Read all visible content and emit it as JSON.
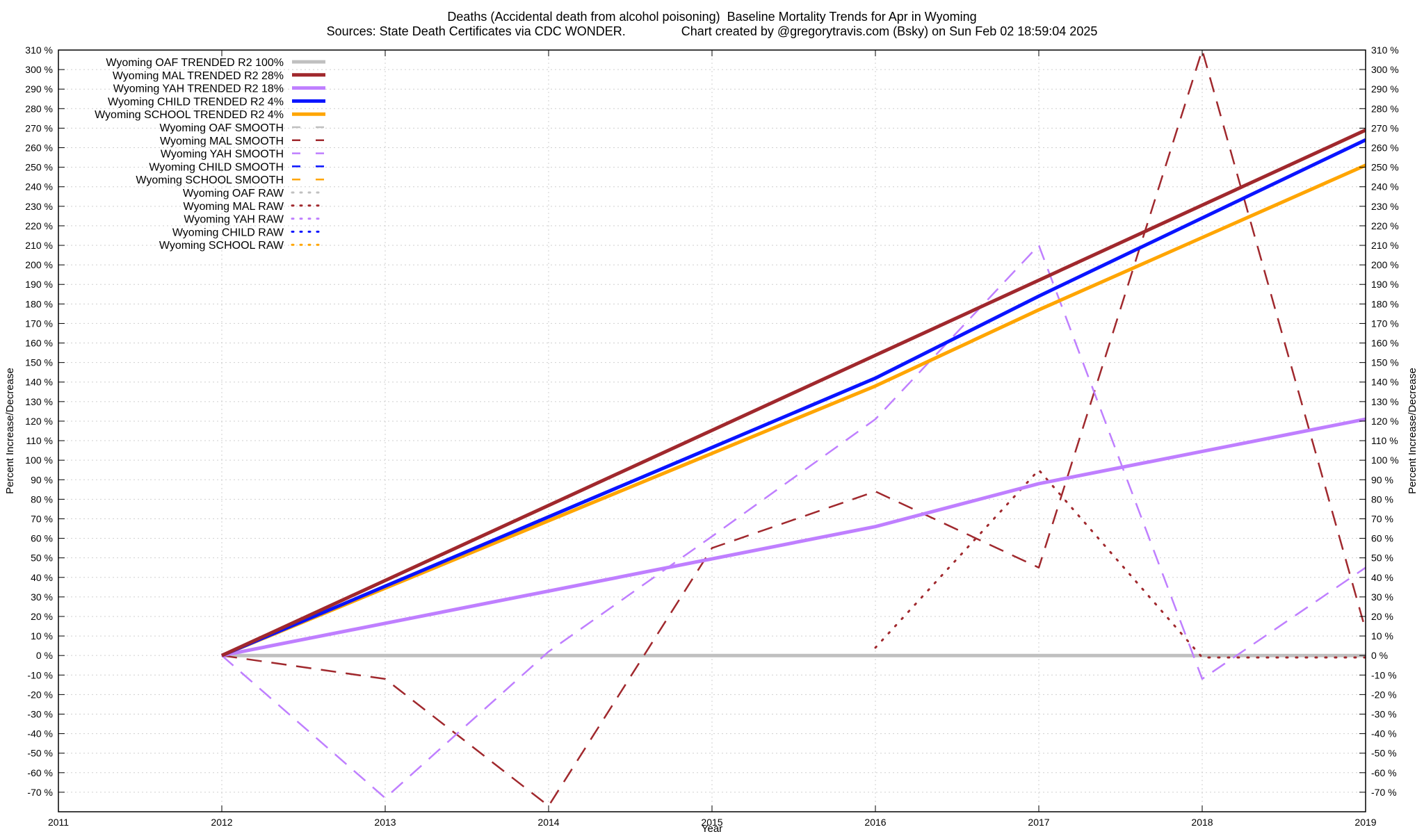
{
  "chart_data": {
    "type": "line",
    "title": "Deaths (Accidental death from alcohol poisoning)  Baseline Mortality Trends for Apr in Wyoming",
    "subtitle": "Sources: State Death Certificates via CDC WONDER.                Chart created by @gregorytravis.com (Bsky) on Sun Feb 02 18:59:04 2025",
    "xlabel": "Year",
    "ylabel": "Percent Increase/Decrease",
    "xlim": [
      2011,
      2019
    ],
    "ylim": [
      -80,
      310
    ],
    "x_ticks": [
      "2011",
      "2012",
      "2013",
      "2014",
      "2015",
      "2016",
      "2017",
      "2018",
      "2019"
    ],
    "y_ticks": [
      "310 %",
      "300 %",
      "290 %",
      "280 %",
      "270 %",
      "260 %",
      "250 %",
      "240 %",
      "230 %",
      "220 %",
      "210 %",
      "200 %",
      "190 %",
      "180 %",
      "170 %",
      "160 %",
      "150 %",
      "140 %",
      "130 %",
      "120 %",
      "110 %",
      "100 %",
      "90 %",
      "80 %",
      "70 %",
      "60 %",
      "50 %",
      "40 %",
      "30 %",
      "20 %",
      "10 %",
      "0 %",
      "-10 %",
      "-20 %",
      "-30 %",
      "-40 %",
      "-50 %",
      "-60 %",
      "-70 %"
    ],
    "grid": true,
    "legend_position": "top-left",
    "series": [
      {
        "name": "Wyoming OAF TRENDED R2 100%",
        "style": "trend",
        "color": "#c0c0c0",
        "x": [
          2012,
          2019
        ],
        "y": [
          0,
          0
        ]
      },
      {
        "name": "Wyoming MAL TRENDED R2  28%",
        "style": "trend",
        "color": "#a0282d",
        "x": [
          2012,
          2019
        ],
        "y": [
          0,
          269
        ]
      },
      {
        "name": "Wyoming YAH TRENDED R2  18%",
        "style": "trend",
        "color": "#bf7fff",
        "x": [
          2012,
          2016,
          2017,
          2019
        ],
        "y": [
          0,
          66,
          88,
          121
        ]
      },
      {
        "name": "Wyoming CHILD TRENDED R2   4%",
        "style": "trend",
        "color": "#0a14ff",
        "x": [
          2012,
          2016,
          2017,
          2019
        ],
        "y": [
          0,
          142,
          184,
          264
        ]
      },
      {
        "name": "Wyoming SCHOOL TRENDED R2   4%",
        "style": "trend",
        "color": "#ffa500",
        "x": [
          2012,
          2016,
          2017,
          2019
        ],
        "y": [
          0,
          138,
          177,
          251
        ]
      },
      {
        "name": "Wyoming OAF SMOOTH",
        "style": "smooth",
        "color": "#c0c0c0",
        "x": [],
        "y": []
      },
      {
        "name": "Wyoming MAL SMOOTH",
        "style": "smooth",
        "color": "#a0282d",
        "x": [
          2012,
          2013,
          2014,
          2015,
          2016,
          2017,
          2018,
          2019
        ],
        "y": [
          0,
          -12,
          -77,
          55,
          84,
          45,
          310,
          13
        ]
      },
      {
        "name": "Wyoming YAH SMOOTH",
        "style": "smooth",
        "color": "#bf7fff",
        "x": [
          2012,
          2013,
          2014,
          2015,
          2016,
          2017,
          2018,
          2019
        ],
        "y": [
          0,
          -73,
          2,
          61,
          121,
          210,
          -12,
          45
        ]
      },
      {
        "name": "Wyoming CHILD SMOOTH",
        "style": "smooth",
        "color": "#0a14ff",
        "x": [],
        "y": []
      },
      {
        "name": "Wyoming SCHOOL SMOOTH",
        "style": "smooth",
        "color": "#ffa500",
        "x": [],
        "y": []
      },
      {
        "name": "Wyoming OAF RAW",
        "style": "raw",
        "color": "#c0c0c0",
        "x": [],
        "y": []
      },
      {
        "name": "Wyoming MAL RAW",
        "style": "raw",
        "color": "#a0282d",
        "x": [
          2016,
          2017,
          2018,
          2019
        ],
        "y": [
          4,
          95,
          -1,
          -1
        ]
      },
      {
        "name": "Wyoming YAH RAW",
        "style": "raw",
        "color": "#bf7fff",
        "x": [],
        "y": []
      },
      {
        "name": "Wyoming CHILD RAW",
        "style": "raw",
        "color": "#0a14ff",
        "x": [],
        "y": []
      },
      {
        "name": "Wyoming SCHOOL RAW",
        "style": "raw",
        "color": "#ffa500",
        "x": [],
        "y": []
      }
    ]
  }
}
